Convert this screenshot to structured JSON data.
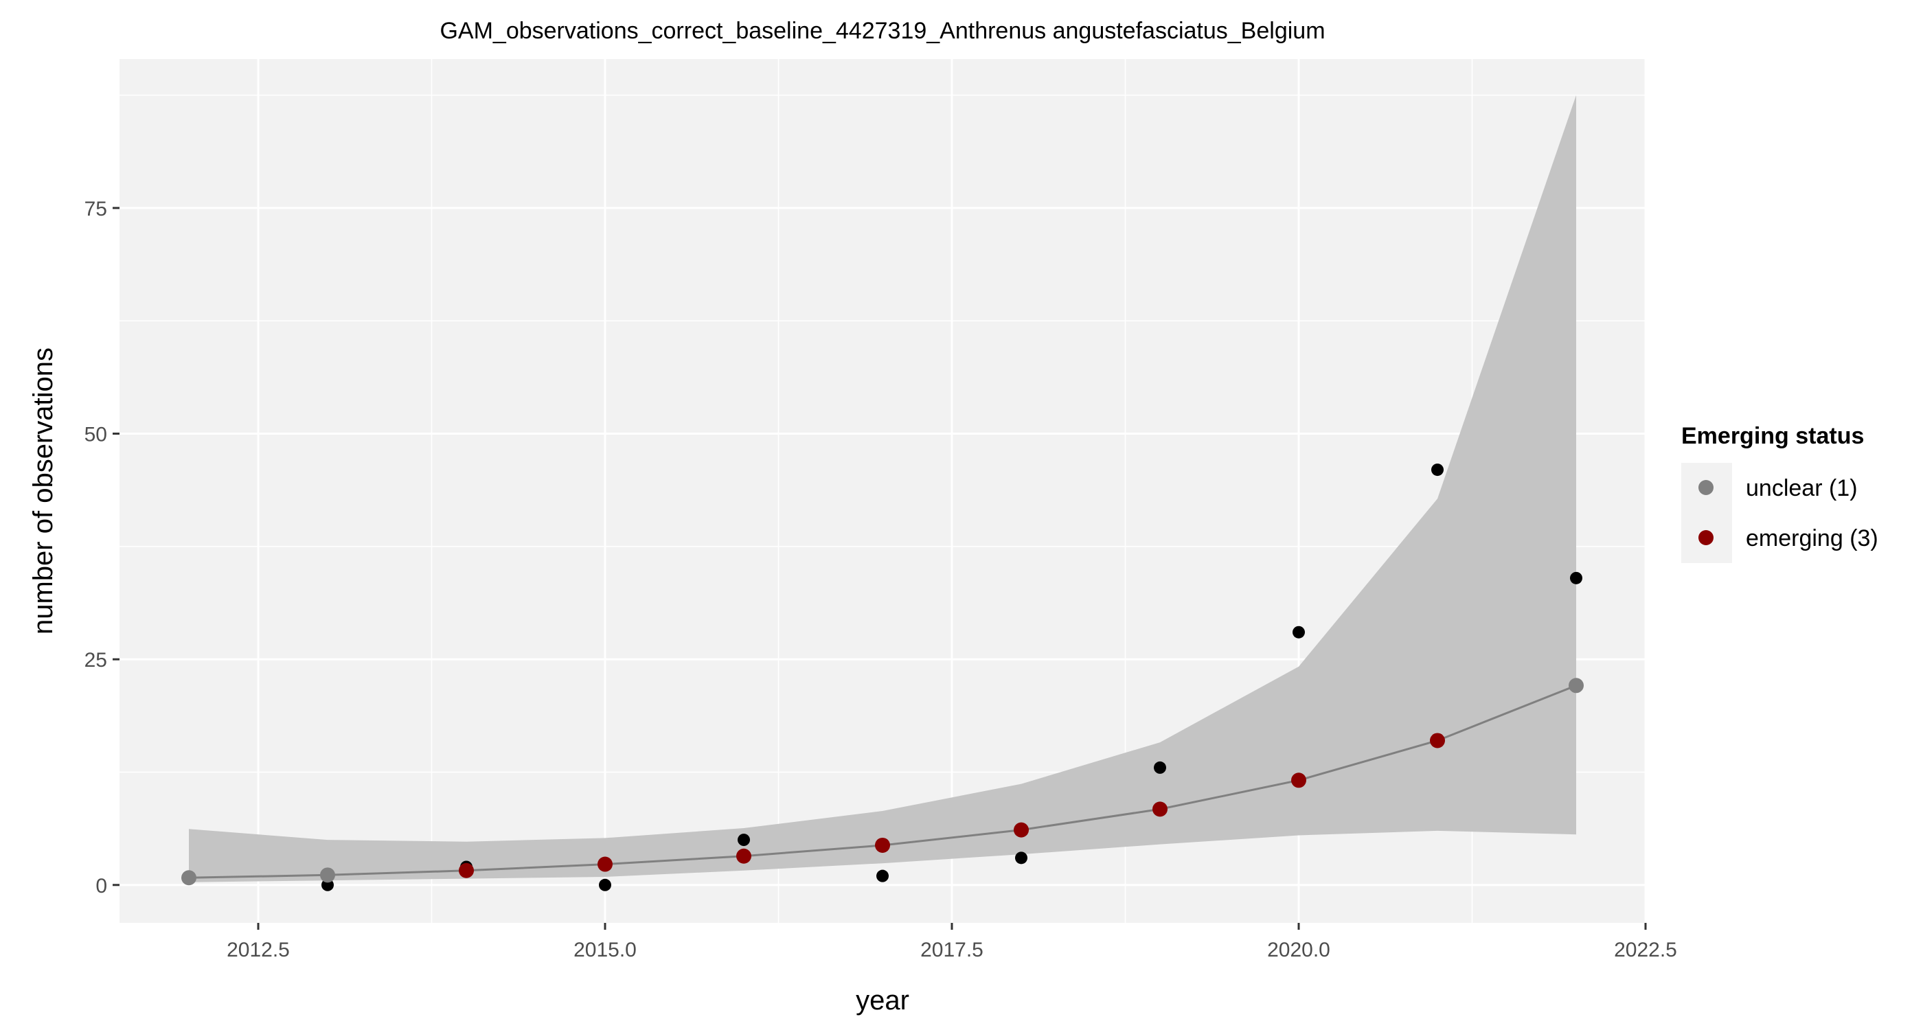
{
  "chart_data": {
    "type": "scatter",
    "title": "GAM_observations_correct_baseline_4427319_Anthrenus angustefasciatus_Belgium",
    "xlabel": "year",
    "ylabel": "number of observations",
    "xlim": [
      2011.5,
      2022.5
    ],
    "ylim": [
      -4.2,
      91.5
    ],
    "x_ticks": [
      2012.5,
      2015.0,
      2017.5,
      2020.0,
      2022.5
    ],
    "x_tick_labels": [
      "2012.5",
      "2015.0",
      "2017.5",
      "2020.0",
      "2022.5"
    ],
    "y_ticks": [
      0,
      25,
      50,
      75
    ],
    "y_tick_labels": [
      "0",
      "25",
      "50",
      "75"
    ],
    "grid": true,
    "legend_position": "right",
    "legend": {
      "title": "Emerging status",
      "entries": [
        {
          "label": "unclear (1)",
          "color": "#808080"
        },
        {
          "label": "emerging (3)",
          "color": "#8B0000"
        }
      ]
    },
    "observed": {
      "color": "#000000",
      "x": [
        2013,
        2014,
        2015,
        2016,
        2017,
        2018,
        2019,
        2020,
        2021,
        2022
      ],
      "y": [
        0,
        2,
        0,
        5,
        1,
        3,
        13,
        28,
        46,
        34
      ]
    },
    "fitted": {
      "line_color": "#808080",
      "x": [
        2012,
        2013,
        2014,
        2015,
        2016,
        2017,
        2018,
        2019,
        2020,
        2021,
        2022
      ],
      "y": [
        0.8,
        1.1,
        1.6,
        2.3,
        3.2,
        4.4,
        6.1,
        8.4,
        11.6,
        16.0,
        22.1
      ],
      "status": [
        "unclear (1)",
        "unclear (1)",
        "emerging (3)",
        "emerging (3)",
        "emerging (3)",
        "emerging (3)",
        "emerging (3)",
        "emerging (3)",
        "emerging (3)",
        "emerging (3)",
        "unclear (1)"
      ]
    },
    "confidence_band": {
      "fill": "#c4c4c4",
      "x": [
        2012,
        2013,
        2014,
        2015,
        2016,
        2017,
        2018,
        2019,
        2020,
        2021,
        2022
      ],
      "lower": [
        0.3,
        0.5,
        0.7,
        0.9,
        1.6,
        2.4,
        3.4,
        4.5,
        5.5,
        6.0,
        5.6
      ],
      "upper": [
        6.2,
        5.0,
        4.8,
        5.2,
        6.3,
        8.2,
        11.2,
        15.8,
        24.2,
        42.8,
        87.5
      ]
    }
  }
}
